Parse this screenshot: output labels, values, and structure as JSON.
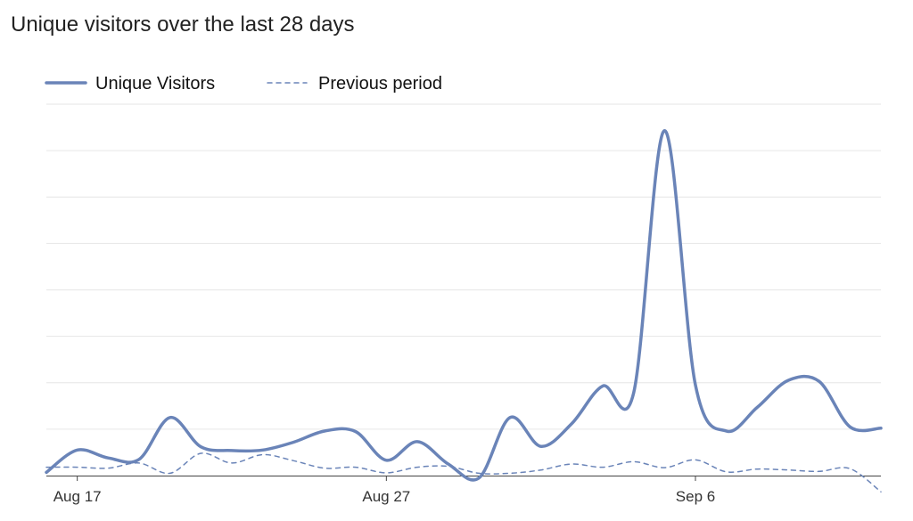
{
  "title": "Unique visitors over the last 28 days",
  "colors": {
    "primary": "#6a84b8",
    "grid": "#e6e6e6",
    "axis": "#444444"
  },
  "chart_data": {
    "type": "line",
    "title": "Unique visitors over the last 28 days",
    "xlabel": "",
    "ylabel": "",
    "x_tick_labels": [
      "Aug 17",
      "Aug 27",
      "Sep 6"
    ],
    "x_tick_days": [
      1,
      11,
      21
    ],
    "day_range": [
      0,
      27
    ],
    "ylim": [
      0,
      8
    ],
    "grid": true,
    "legend": "top-left",
    "series": [
      {
        "name": "Unique Visitors",
        "style": "solid",
        "values": [
          0.07,
          0.55,
          0.38,
          0.35,
          1.25,
          0.62,
          0.54,
          0.55,
          0.72,
          0.96,
          0.95,
          0.33,
          0.73,
          0.25,
          -0.05,
          1.25,
          0.63,
          1.12,
          1.93,
          1.78,
          7.43,
          1.95,
          0.96,
          1.47,
          2.05,
          2.03,
          1.05,
          1.02
        ]
      },
      {
        "name": "Previous period",
        "style": "dashed",
        "values": [
          0.18,
          0.18,
          0.16,
          0.27,
          0.05,
          0.48,
          0.27,
          0.45,
          0.32,
          0.16,
          0.18,
          0.06,
          0.18,
          0.2,
          0.05,
          0.05,
          0.12,
          0.25,
          0.18,
          0.3,
          0.17,
          0.34,
          0.08,
          0.14,
          0.12,
          0.09,
          0.15,
          -0.35
        ]
      }
    ]
  }
}
